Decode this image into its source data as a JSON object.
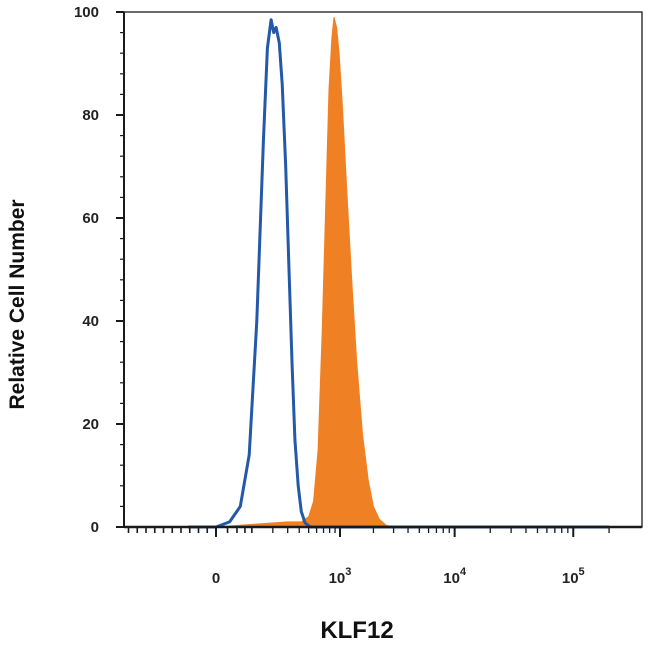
{
  "chart_data": {
    "type": "area",
    "xlabel": "KLF12",
    "ylabel": "Relative Cell Number",
    "x_scale": "biexponential",
    "x_tick_labels": [
      {
        "value": 0,
        "base": "0",
        "exp": ""
      },
      {
        "value": 1000,
        "base": "10",
        "exp": "3"
      },
      {
        "value": 10000,
        "base": "10",
        "exp": "4"
      },
      {
        "value": 100000,
        "base": "10",
        "exp": "5"
      }
    ],
    "y_ticks": [
      0,
      20,
      40,
      60,
      80,
      100
    ],
    "ylim": [
      0,
      100
    ],
    "grid": false,
    "legend": "none",
    "colors": {
      "isotype": "#2458a8",
      "stained": "#f08024",
      "axis": "#1a1a1a"
    },
    "series": [
      {
        "style": "outline",
        "color": "#2458a8",
        "points": [
          [
            -80,
            0
          ],
          [
            0,
            0
          ],
          [
            30,
            1
          ],
          [
            60,
            4
          ],
          [
            90,
            14
          ],
          [
            120,
            40
          ],
          [
            150,
            75
          ],
          [
            170,
            93
          ],
          [
            190,
            98.5
          ],
          [
            205,
            96
          ],
          [
            220,
            97
          ],
          [
            240,
            94
          ],
          [
            260,
            86
          ],
          [
            285,
            70
          ],
          [
            310,
            50
          ],
          [
            335,
            32
          ],
          [
            360,
            17
          ],
          [
            390,
            8
          ],
          [
            420,
            3
          ],
          [
            460,
            0.8
          ],
          [
            520,
            0
          ],
          [
            200000,
            0
          ]
        ]
      },
      {
        "style": "filled",
        "color": "#f08024",
        "points": [
          [
            -80,
            0
          ],
          [
            0,
            0
          ],
          [
            100,
            0.5
          ],
          [
            300,
            1
          ],
          [
            420,
            1
          ],
          [
            500,
            2
          ],
          [
            560,
            5
          ],
          [
            620,
            15
          ],
          [
            680,
            38
          ],
          [
            740,
            65
          ],
          [
            790,
            85
          ],
          [
            840,
            95
          ],
          [
            880,
            99
          ],
          [
            930,
            97
          ],
          [
            980,
            92
          ],
          [
            1050,
            82
          ],
          [
            1150,
            66
          ],
          [
            1280,
            48
          ],
          [
            1420,
            32
          ],
          [
            1600,
            18
          ],
          [
            1800,
            9
          ],
          [
            2000,
            4
          ],
          [
            2250,
            1.5
          ],
          [
            2600,
            0.3
          ],
          [
            3200,
            0
          ],
          [
            200000,
            0
          ]
        ]
      }
    ]
  }
}
